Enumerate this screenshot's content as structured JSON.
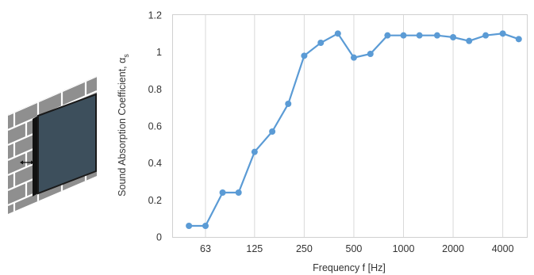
{
  "chart_data": {
    "type": "line",
    "title": "",
    "xlabel": "Frequency f [Hz]",
    "ylabel": "Sound Absorption Coefficient, α",
    "ylabel_subscript": "s",
    "x_scale": "log",
    "x_tick_labels": [
      "63",
      "125",
      "250",
      "500",
      "1000",
      "2000",
      "4000"
    ],
    "x_tick_values": [
      63,
      125,
      250,
      500,
      1000,
      2000,
      4000
    ],
    "ylim": [
      0,
      1.2
    ],
    "y_ticks": [
      0,
      0.2,
      0.4,
      0.6,
      0.8,
      1,
      1.2
    ],
    "y_tick_labels": [
      "0",
      "0.2",
      "0.4",
      "0.6",
      "0.8",
      "1",
      "1.2"
    ],
    "grid": "vertical",
    "legend": "none",
    "series": [
      {
        "color": "#5b9bd5",
        "x": [
          50,
          63,
          80,
          100,
          125,
          160,
          200,
          250,
          315,
          400,
          500,
          630,
          800,
          1000,
          1250,
          1600,
          2000,
          2500,
          3150,
          4000,
          5000
        ],
        "values": [
          0.06,
          0.06,
          0.24,
          0.24,
          0.46,
          0.57,
          0.72,
          0.98,
          1.05,
          1.1,
          0.97,
          0.99,
          1.09,
          1.09,
          1.09,
          1.09,
          1.08,
          1.06,
          1.09,
          1.1,
          1.07
        ]
      }
    ]
  },
  "illustration": {
    "type": "wall-mounted-panel",
    "brick_color": "#8f8f8f",
    "panel_color": "#3d4f5c",
    "icon": "double-arrow-icon"
  }
}
